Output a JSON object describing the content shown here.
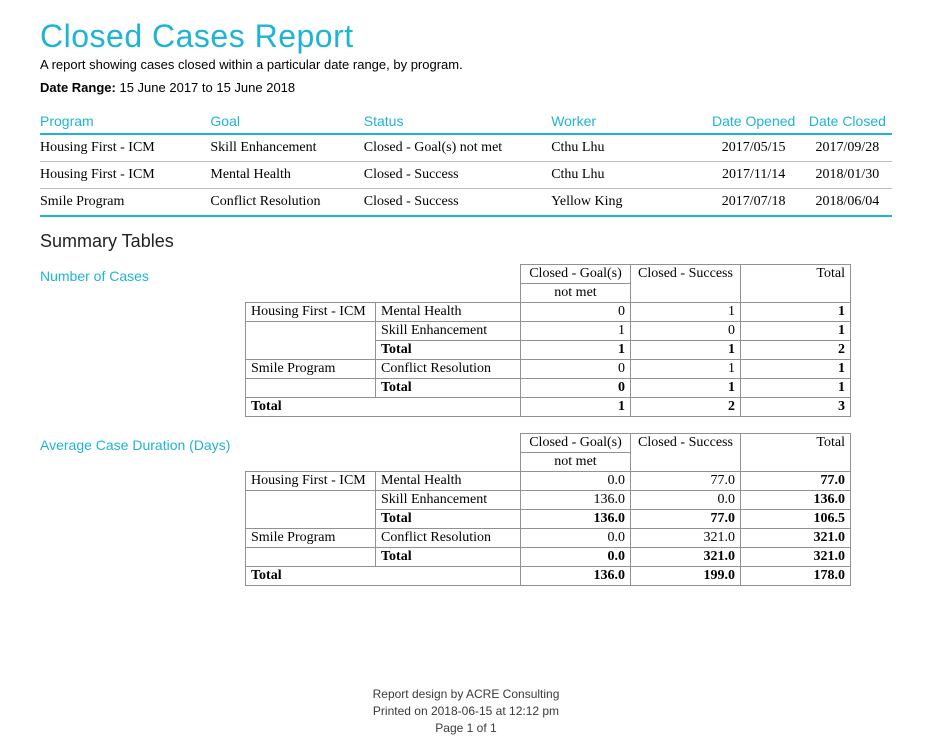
{
  "colors": {
    "accent": "#1fb4d6",
    "text": "#000000",
    "grid_light": "#bdbdbd",
    "grid": "#919191",
    "background": "#ffffff",
    "footer_text": "#3a3a3a"
  },
  "title": "Closed Cases Report",
  "subtitle": "A report showing cases closed within a particular date range, by program.",
  "date_range_label": "Date Range:",
  "date_range_value": "15 June 2017 to 15 June 2018",
  "cases": {
    "widths": [
      "20%",
      "18%",
      "22%",
      "18%",
      "12%",
      "10%"
    ],
    "columns": [
      "Program",
      "Goal",
      "Status",
      "Worker",
      "Date Opened",
      "Date Closed"
    ],
    "rows": [
      [
        "Housing First - ICM",
        "Skill Enhancement",
        "Closed - Goal(s) not met",
        "Cthu Lhu",
        "2017/05/15",
        "2017/09/28"
      ],
      [
        "Housing First - ICM",
        "Mental Health",
        "Closed - Success",
        "Cthu Lhu",
        "2017/11/14",
        "2018/01/30"
      ],
      [
        "Smile Program",
        "Conflict Resolution",
        "Closed - Success",
        "Yellow King",
        "2017/07/18",
        "2018/06/04"
      ]
    ]
  },
  "summary_heading": "Summary Tables",
  "number_of_cases": {
    "label": "Number of Cases",
    "col_headers": [
      "Closed - Goal(s) not met",
      "Closed - Success",
      "Total"
    ],
    "rows": [
      {
        "program": "Housing First - ICM",
        "goal": "Mental Health",
        "v": [
          "0",
          "1",
          "1"
        ],
        "totalrow": false,
        "bold": [
          false,
          false,
          true
        ]
      },
      {
        "program": "",
        "goal": "Skill Enhancement",
        "v": [
          "1",
          "0",
          "1"
        ],
        "totalrow": false,
        "bold": [
          false,
          false,
          true
        ]
      },
      {
        "program": "",
        "goal": "Total",
        "v": [
          "1",
          "1",
          "2"
        ],
        "totalrow": true,
        "bold": [
          true,
          true,
          true
        ]
      },
      {
        "program": "Smile Program",
        "goal": "Conflict Resolution",
        "v": [
          "0",
          "1",
          "1"
        ],
        "totalrow": false,
        "bold": [
          false,
          false,
          true
        ]
      },
      {
        "program": "",
        "goal": "Total",
        "v": [
          "0",
          "1",
          "1"
        ],
        "totalrow": true,
        "bold": [
          true,
          true,
          true
        ]
      }
    ],
    "grand": {
      "label": "Total",
      "v": [
        "1",
        "2",
        "3"
      ]
    }
  },
  "avg_duration": {
    "label": "Average Case Duration (Days)",
    "col_headers": [
      "Closed - Goal(s) not met",
      "Closed - Success",
      "Total"
    ],
    "rows": [
      {
        "program": "Housing First - ICM",
        "goal": "Mental Health",
        "v": [
          "0.0",
          "77.0",
          "77.0"
        ],
        "totalrow": false,
        "bold": [
          false,
          false,
          true
        ]
      },
      {
        "program": "",
        "goal": "Skill Enhancement",
        "v": [
          "136.0",
          "0.0",
          "136.0"
        ],
        "totalrow": false,
        "bold": [
          false,
          false,
          true
        ]
      },
      {
        "program": "",
        "goal": "Total",
        "v": [
          "136.0",
          "77.0",
          "106.5"
        ],
        "totalrow": true,
        "bold": [
          true,
          true,
          true
        ]
      },
      {
        "program": "Smile Program",
        "goal": "Conflict Resolution",
        "v": [
          "0.0",
          "321.0",
          "321.0"
        ],
        "totalrow": false,
        "bold": [
          false,
          false,
          true
        ]
      },
      {
        "program": "",
        "goal": "Total",
        "v": [
          "0.0",
          "321.0",
          "321.0"
        ],
        "totalrow": true,
        "bold": [
          true,
          true,
          true
        ]
      }
    ],
    "grand": {
      "label": "Total",
      "v": [
        "136.0",
        "199.0",
        "178.0"
      ]
    }
  },
  "footer": {
    "line1": "Report design by ACRE Consulting",
    "line2": "Printed on 2018-06-15 at 12:12 pm",
    "line3": "Page 1 of 1"
  }
}
